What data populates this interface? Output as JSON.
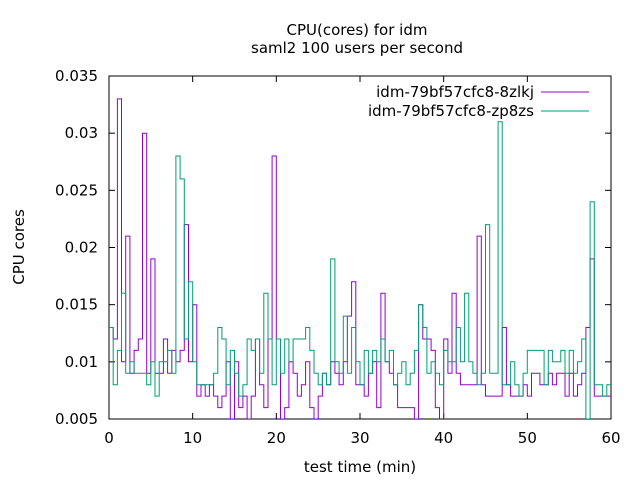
{
  "chart_data": {
    "type": "line",
    "title": "CPU(cores) for idm",
    "subtitle": "saml2 100 users per second",
    "xlabel": "test time (min)",
    "ylabel": "CPU cores",
    "xlim": [
      0,
      60
    ],
    "ylim": [
      0.005,
      0.035
    ],
    "xticks": [
      "0",
      "10",
      "20",
      "30",
      "40",
      "50",
      "60"
    ],
    "yticks": [
      "0.005",
      "0.01",
      "0.015",
      "0.02",
      "0.025",
      "0.03",
      "0.035"
    ],
    "grid": false,
    "legend_position": "top-right",
    "x_step": 0.5,
    "series": [
      {
        "name": "idm-79bf57cfc8-8zlkj",
        "color": "#9400d3",
        "values": [
          0.013,
          0.012,
          0.033,
          0.01,
          0.021,
          0.009,
          0.011,
          0.012,
          0.03,
          0.009,
          0.019,
          0.009,
          0.009,
          0.012,
          0.009,
          0.011,
          0.01,
          0.011,
          0.022,
          0.01,
          0.015,
          0.007,
          0.008,
          0.007,
          0.008,
          0.007,
          0.006,
          0.007,
          0.01,
          0.005,
          0.01,
          0.006,
          0.007,
          0.005,
          0.007,
          0.012,
          0.008,
          0.006,
          0.012,
          0.028,
          0.012,
          0.005,
          0.006,
          0.01,
          0.009,
          0.007,
          0.008,
          0.01,
          0.006,
          0.005,
          0.007,
          0.009,
          0.008,
          0.01,
          0.009,
          0.008,
          0.01,
          0.014,
          0.017,
          0.008,
          0.008,
          0.007,
          0.009,
          0.01,
          0.006,
          0.016,
          0.01,
          0.009,
          0.008,
          0.006,
          0.006,
          0.006,
          0.006,
          0.005,
          0.015,
          0.012,
          0.012,
          0.011,
          0.006,
          0.004,
          0.012,
          0.009,
          0.016,
          0.009,
          0.008,
          0.008,
          0.008,
          0.008,
          0.021,
          0.008,
          0.007,
          0.007,
          0.007,
          0.007,
          0.013,
          0.008,
          0.007,
          0.007,
          0.007,
          0.008,
          0.007,
          0.009,
          0.009,
          0.008,
          0.008,
          0.009,
          0.008,
          0.009,
          0.009,
          0.007,
          0.009,
          0.007,
          0.008,
          0.009,
          0.013,
          0.019,
          0.007,
          0.007,
          0.007,
          0.007
        ]
      },
      {
        "name": "idm-79bf57cfc8-zp8zs",
        "color": "#009e73",
        "values": [
          0.013,
          0.008,
          0.011,
          0.016,
          0.009,
          0.01,
          0.009,
          0.009,
          0.009,
          0.008,
          0.01,
          0.007,
          0.01,
          0.01,
          0.011,
          0.009,
          0.028,
          0.026,
          0.012,
          0.017,
          0.01,
          0.008,
          0.008,
          0.008,
          0.008,
          0.009,
          0.013,
          0.012,
          0.008,
          0.011,
          0.009,
          0.007,
          0.008,
          0.012,
          0.011,
          0.012,
          0.009,
          0.016,
          0.012,
          0.008,
          0.012,
          0.009,
          0.012,
          0.01,
          0.012,
          0.012,
          0.012,
          0.013,
          0.011,
          0.009,
          0.008,
          0.009,
          0.008,
          0.019,
          0.01,
          0.009,
          0.014,
          0.009,
          0.013,
          0.01,
          0.008,
          0.011,
          0.009,
          0.011,
          0.01,
          0.012,
          0.01,
          0.011,
          0.008,
          0.009,
          0.01,
          0.008,
          0.009,
          0.011,
          0.015,
          0.013,
          0.009,
          0.01,
          0.009,
          0.008,
          0.011,
          0.01,
          0.01,
          0.013,
          0.01,
          0.016,
          0.01,
          0.009,
          0.008,
          0.009,
          0.022,
          0.009,
          0.009,
          0.031,
          0.008,
          0.008,
          0.01,
          0.008,
          0.007,
          0.009,
          0.011,
          0.011,
          0.011,
          0.011,
          0.008,
          0.011,
          0.01,
          0.01,
          0.011,
          0.009,
          0.011,
          0.009,
          0.01,
          0.012,
          0.005,
          0.024,
          0.008,
          0.008,
          0.007,
          0.008
        ]
      }
    ]
  }
}
